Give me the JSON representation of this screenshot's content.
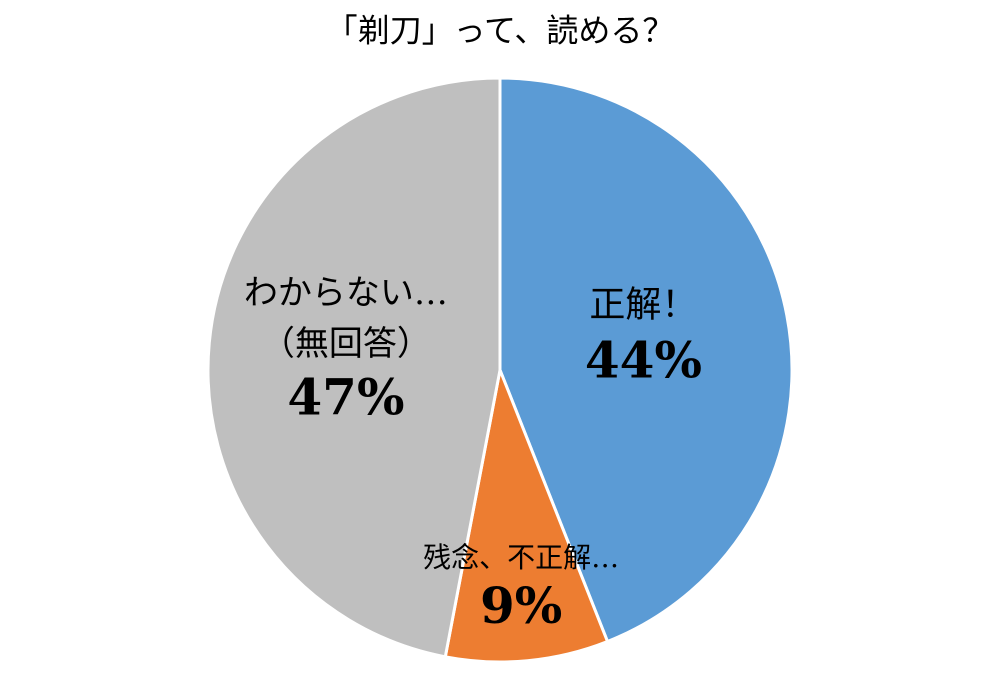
{
  "chart_data": {
    "type": "pie",
    "title": "「剃刀」って、読める？",
    "categories": [
      "正解！",
      "残念、不正解…",
      "わからない…\n（無回答）"
    ],
    "values": [
      44,
      9,
      47
    ],
    "value_labels": [
      "44%",
      "9%",
      "47%"
    ],
    "colors": [
      "#5b9bd5",
      "#ed7d31",
      "#bfbfbf"
    ]
  }
}
